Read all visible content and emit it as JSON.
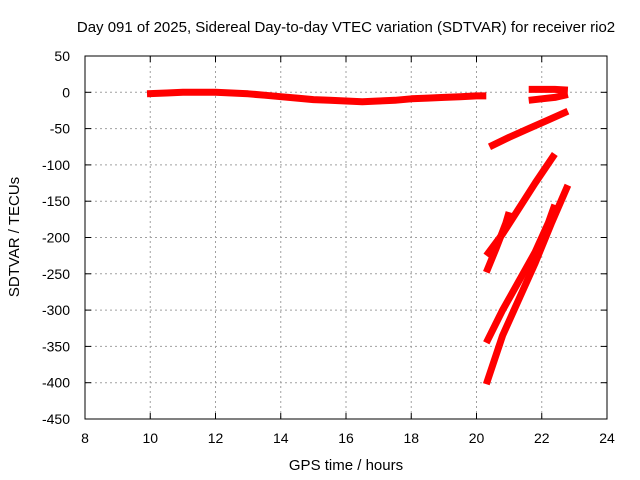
{
  "chart_data": {
    "type": "line",
    "title": "Day 091 of 2025, Sidereal Day-to-day VTEC variation (SDTVAR) for receiver rio2",
    "xlabel": "GPS time / hours",
    "ylabel": "SDTVAR / TECUs",
    "xlim": [
      8,
      24
    ],
    "ylim": [
      -450,
      50
    ],
    "xticks": [
      8,
      10,
      12,
      14,
      16,
      18,
      20,
      22,
      24
    ],
    "yticks": [
      50,
      0,
      -50,
      -100,
      -150,
      -200,
      -250,
      -300,
      -350,
      -400,
      -450
    ],
    "grid": true,
    "series_color": "#ff0000",
    "series": [
      {
        "x": [
          9.9,
          10.5,
          11.0,
          11.5,
          12.0,
          12.5,
          13.0,
          13.5,
          14.0,
          14.5,
          15.0,
          15.5,
          16.0,
          16.5,
          17.0,
          17.5,
          18.0,
          18.5,
          19.0,
          19.5,
          20.0,
          20.3
        ],
        "y": [
          -2,
          -1,
          0,
          0,
          0,
          -1,
          -2,
          -4,
          -6,
          -8,
          -10,
          -11,
          -12,
          -13,
          -12,
          -11,
          -9,
          -8,
          -7,
          -6,
          -5,
          -5
        ]
      },
      {
        "x": [
          21.6,
          22.0,
          22.4,
          22.8
        ],
        "y": [
          4,
          4,
          4,
          3
        ]
      },
      {
        "x": [
          21.6,
          22.0,
          22.4,
          22.8
        ],
        "y": [
          -11,
          -9,
          -7,
          -3
        ]
      },
      {
        "x": [
          20.4,
          21.0,
          21.6,
          22.2,
          22.8
        ],
        "y": [
          -75,
          -62,
          -50,
          -38,
          -26
        ]
      },
      {
        "x": [
          20.3,
          20.8,
          21.3,
          21.8,
          22.4
        ],
        "y": [
          -225,
          -195,
          -160,
          -125,
          -85
        ]
      },
      {
        "x": [
          20.3,
          20.6,
          20.9,
          21.0
        ],
        "y": [
          -248,
          -215,
          -180,
          -165
        ]
      },
      {
        "x": [
          20.3,
          20.8,
          21.3,
          21.8,
          22.2,
          22.4
        ],
        "y": [
          -345,
          -300,
          -260,
          -220,
          -180,
          -155
        ]
      },
      {
        "x": [
          20.3,
          20.8,
          21.3,
          21.8,
          22.3,
          22.8
        ],
        "y": [
          -402,
          -335,
          -285,
          -235,
          -180,
          -128
        ]
      }
    ]
  }
}
